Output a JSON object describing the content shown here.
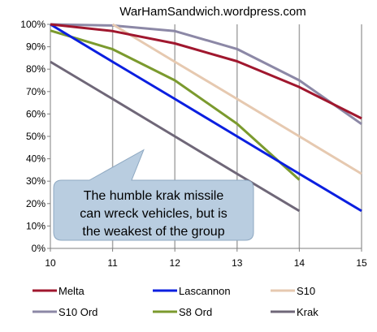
{
  "chart_data": {
    "type": "line",
    "title": "WarHamSandwich.wordpress.com",
    "x": [
      10,
      11,
      12,
      13,
      14,
      15
    ],
    "xlim": [
      10,
      15
    ],
    "ylim": [
      0,
      100
    ],
    "y_ticks": [
      "0%",
      "10%",
      "20%",
      "30%",
      "40%",
      "50%",
      "60%",
      "70%",
      "80%",
      "90%",
      "100%"
    ],
    "x_ticks": [
      "10",
      "11",
      "12",
      "13",
      "14",
      "15"
    ],
    "grid": "vertical",
    "legend_position": "bottom",
    "series": [
      {
        "name": "Melta",
        "color": "#a0172e",
        "points": [
          [
            10,
            100
          ],
          [
            11,
            97
          ],
          [
            12,
            91.5
          ],
          [
            13,
            83.5
          ],
          [
            14,
            72
          ],
          [
            15,
            58
          ]
        ]
      },
      {
        "name": "Lascannon",
        "color": "#0b1fe0",
        "points": [
          [
            10,
            100
          ],
          [
            11,
            83.3
          ],
          [
            12,
            66.7
          ],
          [
            13,
            50
          ],
          [
            14,
            33.3
          ],
          [
            15,
            16.7
          ]
        ]
      },
      {
        "name": "S10",
        "color": "#e6c9b0",
        "points": [
          [
            11,
            100
          ],
          [
            12,
            83.3
          ],
          [
            13,
            66.7
          ],
          [
            14,
            50
          ],
          [
            15,
            33.3
          ]
        ]
      },
      {
        "name": "S10 Ord",
        "color": "#8c88a6",
        "points": [
          [
            10,
            100
          ],
          [
            11,
            99.5
          ],
          [
            12,
            97
          ],
          [
            13,
            89
          ],
          [
            14,
            75
          ],
          [
            15,
            55.5
          ]
        ]
      },
      {
        "name": "S8 Ord",
        "color": "#7b9a2e",
        "points": [
          [
            10,
            97.2
          ],
          [
            11,
            88.9
          ],
          [
            12,
            75
          ],
          [
            13,
            55.6
          ],
          [
            14,
            30.6
          ]
        ]
      },
      {
        "name": "Krak",
        "color": "#6f6778",
        "points": [
          [
            10,
            83.3
          ],
          [
            11,
            66.7
          ],
          [
            12,
            50
          ],
          [
            13,
            33.3
          ],
          [
            14,
            16.7
          ]
        ]
      }
    ],
    "annotation": {
      "lines": [
        "The humble krak missile",
        "can wreck vehicles, but is",
        "the weakest of the group"
      ],
      "pointer_to": [
        11.5,
        44
      ]
    }
  },
  "colors": {
    "grid": "#a6a6a6",
    "axis": "#7f7f7f",
    "callout_fill": "#b9cde0",
    "callout_stroke": "#8fa9c2"
  }
}
